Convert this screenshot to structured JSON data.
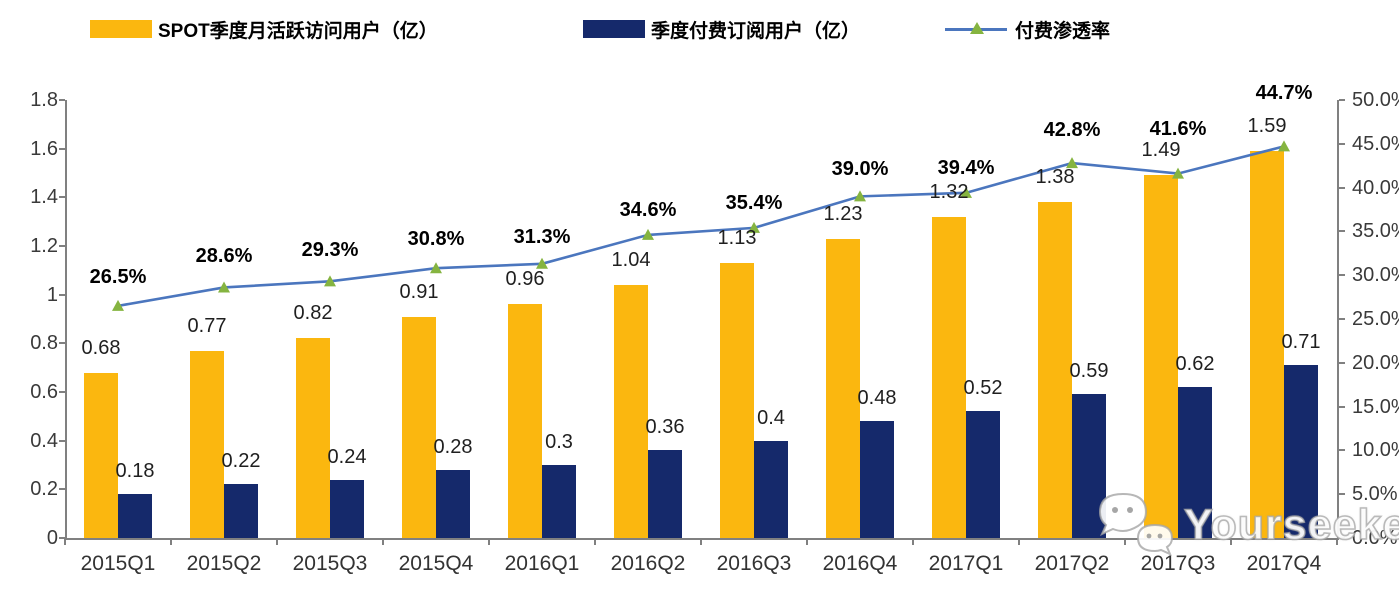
{
  "legend": [
    {
      "label": "SPOT季度月活跃访问用户（亿）",
      "swatch": "bar-swatch",
      "color": "#FBB70F"
    },
    {
      "label": "季度付费订阅用户（亿）",
      "swatch": "bar-swatch",
      "color": "#15296B"
    },
    {
      "label": "付费渗透率",
      "swatch": "line-swatch",
      "color": "#4B76BE",
      "marker_color": "#85B440"
    }
  ],
  "chart_data": {
    "type": "bar+line combo",
    "categories": [
      "2015Q1",
      "2015Q2",
      "2015Q3",
      "2015Q4",
      "2016Q1",
      "2016Q2",
      "2016Q3",
      "2016Q4",
      "2017Q1",
      "2017Q2",
      "2017Q3",
      "2017Q4"
    ],
    "series": [
      {
        "name": "SPOT季度月活跃访问用户（亿）",
        "type": "bar",
        "axis": "left",
        "color": "#FBB70F",
        "values": [
          0.68,
          0.77,
          0.82,
          0.91,
          0.96,
          1.04,
          1.13,
          1.23,
          1.32,
          1.38,
          1.49,
          1.59
        ],
        "point_labels": [
          "0.68",
          "0.77",
          "0.82",
          "0.91",
          "0.96",
          "1.04",
          "1.13",
          "1.23",
          "1.32",
          "1.38",
          "1.49",
          "1.59"
        ]
      },
      {
        "name": "季度付费订阅用户（亿）",
        "type": "bar",
        "axis": "left",
        "color": "#15296B",
        "values": [
          0.18,
          0.22,
          0.24,
          0.28,
          0.3,
          0.36,
          0.4,
          0.48,
          0.52,
          0.59,
          0.62,
          0.71
        ],
        "point_labels": [
          "0.18",
          "0.22",
          "0.24",
          "0.28",
          "0.3",
          "0.36",
          "0.4",
          "0.48",
          "0.52",
          "0.59",
          "0.62",
          "0.71"
        ]
      },
      {
        "name": "付费渗透率",
        "type": "line",
        "axis": "right",
        "color": "#4B76BE",
        "marker": "triangle",
        "marker_color": "#85B440",
        "values": [
          26.5,
          28.6,
          29.3,
          30.8,
          31.3,
          34.6,
          35.4,
          39.0,
          39.4,
          42.8,
          41.6,
          44.7
        ],
        "point_labels": [
          "26.5%",
          "28.6%",
          "29.3%",
          "30.8%",
          "31.3%",
          "34.6%",
          "35.4%",
          "39.0%",
          "39.4%",
          "42.8%",
          "41.6%",
          "44.7%"
        ]
      }
    ],
    "left_axis": {
      "min": 0,
      "max": 1.8,
      "ticks": [
        "1.8",
        "1.6",
        "1.4",
        "1.2",
        "1",
        "0.8",
        "0.6",
        "0.4",
        "0.2",
        "0"
      ]
    },
    "right_axis": {
      "min": 0,
      "max": 50,
      "ticks": [
        "50.0%",
        "45.0%",
        "40.0%",
        "35.0%",
        "30.0%",
        "25.0%",
        "20.0%",
        "15.0%",
        "10.0%",
        "5.0%",
        "0.0%"
      ]
    },
    "grid": false,
    "legend_position": "top"
  },
  "watermark": {
    "text": "Yourseeker",
    "icon": "wechat-icon"
  }
}
